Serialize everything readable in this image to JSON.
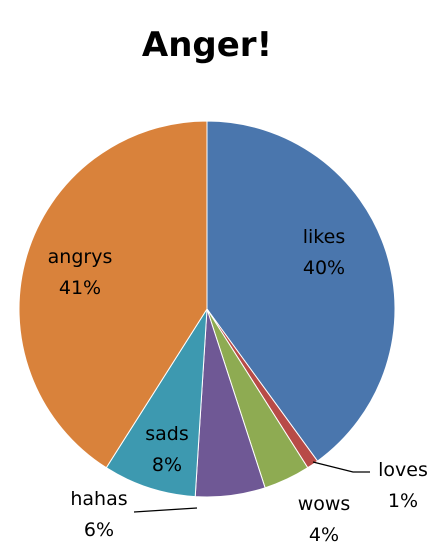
{
  "chart_data": {
    "type": "pie",
    "title": "Anger!",
    "start_angle_deg": 0,
    "direction": "clockwise",
    "slices": [
      {
        "label": "likes",
        "value": 40,
        "percent_label": "40%",
        "color": "#4A76AD"
      },
      {
        "label": "loves",
        "value": 1,
        "percent_label": "1%",
        "color": "#B84B47"
      },
      {
        "label": "wows",
        "value": 4,
        "percent_label": "4%",
        "color": "#8EAB52"
      },
      {
        "label": "hahas",
        "value": 6,
        "percent_label": "6%",
        "color": "#6F5895"
      },
      {
        "label": "sads",
        "value": 8,
        "percent_label": "8%",
        "color": "#3D99B0"
      },
      {
        "label": "angrys",
        "value": 41,
        "percent_label": "41%",
        "color": "#D9823B"
      }
    ],
    "legend": "none",
    "data_labels": "category and percentage"
  }
}
